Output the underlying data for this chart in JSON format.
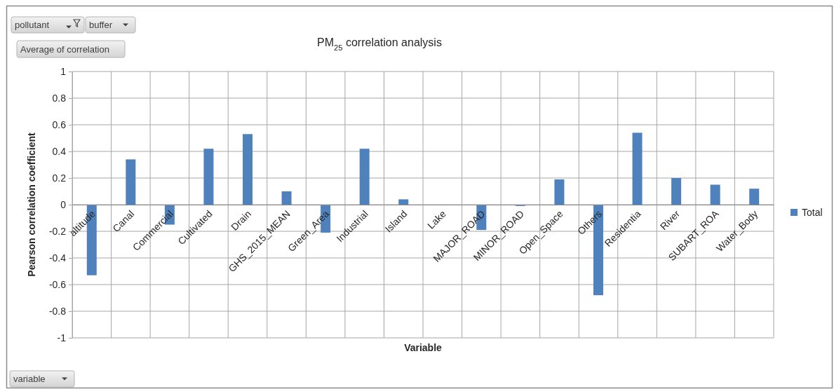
{
  "chart_data": {
    "type": "bar",
    "title": "PM$_{25}$ correlation analysis",
    "xlabel": "Variable",
    "ylabel": "Pearson correlation coefficient",
    "categories": [
      "altitude",
      "Canal",
      "Commercial",
      "Cultivated",
      "Drain",
      "GHS_2015_MEAN",
      "Green_Area",
      "Industrial",
      "Island",
      "Lake",
      "MAJOR_ROAD",
      "MINOR_ROAD",
      "Open_Space",
      "Others",
      "Residentia",
      "River",
      "SUBART_ROA",
      "Water_Body"
    ],
    "series": [
      {
        "name": "Total",
        "color": "#4f81bd",
        "values": [
          -0.53,
          0.34,
          -0.15,
          0.42,
          0.53,
          0.1,
          -0.21,
          0.42,
          0.04,
          null,
          -0.19,
          -0.01,
          0.19,
          -0.68,
          0.54,
          0.2,
          0.15,
          0.12
        ]
      }
    ],
    "ylim": [
      -1,
      1
    ],
    "yticks": [
      -1,
      -0.8,
      -0.6,
      -0.4,
      -0.2,
      0,
      0.2,
      0.4,
      0.6,
      0.8,
      1
    ],
    "grid": true,
    "legend": "right",
    "annotations": [
      "pollutant",
      "buffer",
      "Average of correlation",
      "variable"
    ]
  }
}
